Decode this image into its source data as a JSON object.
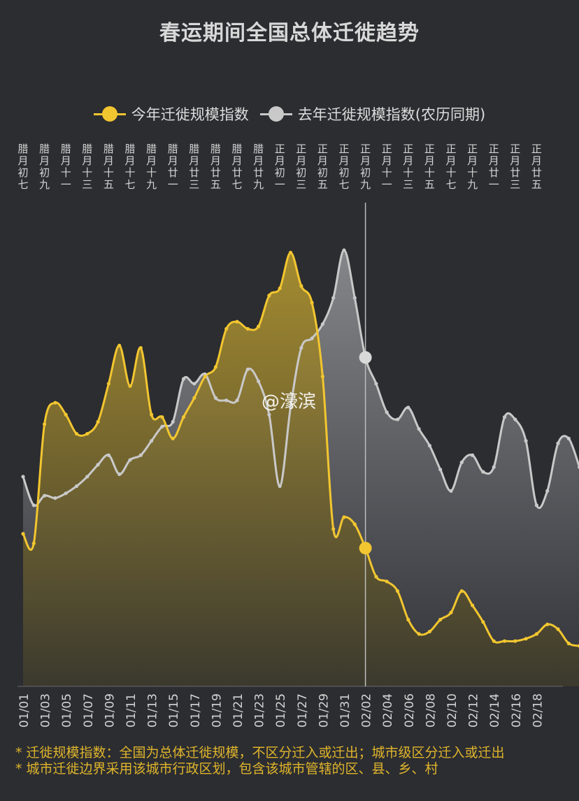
{
  "title": "春运期间全国总体迁徙趋势",
  "watermark": "@濠滨",
  "legend": {
    "current": "今年迁徙规模指数",
    "previous": "去年迁徙规模指数(农历同期)"
  },
  "footnotes": [
    "* 迁徙规模指数：全国为总体迁徙规模，不区分迁入或迁出；城市级区分迁入或迁出",
    "* 城市迁徙边界采用该城市行政区划，包含该城市管辖的区、县、乡、村"
  ],
  "colors": {
    "current": "#f2c630",
    "previous": "#c9c9c9",
    "background": "#2c2d31",
    "footnote": "#e0b52b"
  },
  "chart_data": {
    "type": "area",
    "x_tick_labels": [
      "01/01",
      "01/03",
      "01/05",
      "01/07",
      "01/09",
      "01/11",
      "01/13",
      "01/15",
      "01/17",
      "01/19",
      "01/21",
      "01/23",
      "01/25",
      "01/27",
      "01/29",
      "01/31",
      "02/02",
      "02/04",
      "02/06",
      "02/08",
      "02/10",
      "02/12",
      "02/14",
      "02/16",
      "02/18"
    ],
    "lunar_tick_labels": [
      "腊月初七",
      "腊月初九",
      "腊月十一",
      "腊月十三",
      "腊月十五",
      "腊月十七",
      "腊月十九",
      "腊月廿一",
      "腊月廿三",
      "腊月廿五",
      "腊月廿七",
      "腊月廿九",
      "正月初一",
      "正月初三",
      "正月初五",
      "正月初七",
      "正月初九",
      "正月十一",
      "正月十三",
      "正月十五",
      "正月十七",
      "正月十九",
      "正月廿一",
      "正月廿三",
      "正月廿五"
    ],
    "current_date": "02/02",
    "y_range": [
      0,
      200
    ],
    "grid": false,
    "legend_position": "top-center",
    "series": [
      {
        "name": "今年迁徙规模指数",
        "color": "#f2c630",
        "start_date": "01/01",
        "values": [
          64,
          60,
          110,
          119,
          114,
          106,
          106,
          111,
          127,
          143,
          126,
          142,
          114,
          113,
          104,
          113,
          121,
          130,
          134,
          150,
          153,
          150,
          151,
          164,
          167,
          182,
          168,
          161,
          130,
          66,
          71,
          68,
          58,
          46,
          44,
          40,
          28,
          22,
          23,
          28,
          31,
          40,
          34,
          27,
          19,
          19,
          19,
          20,
          22,
          26,
          24,
          18,
          17
        ]
      },
      {
        "name": "去年迁徙规模指数(农历同期)",
        "color": "#c9c9c9",
        "start_date": "01/01",
        "values": [
          88,
          76,
          80,
          79,
          81,
          84,
          88,
          93,
          97,
          89,
          95,
          97,
          103,
          109,
          111,
          129,
          127,
          131,
          121,
          120,
          120,
          133,
          128,
          114,
          84,
          117,
          142,
          146,
          152,
          163,
          183,
          163,
          138,
          127,
          115,
          112,
          117,
          108,
          101,
          91,
          82,
          94,
          97,
          90,
          92,
          113,
          112,
          103,
          76,
          82,
          102,
          104,
          92
        ]
      }
    ]
  }
}
